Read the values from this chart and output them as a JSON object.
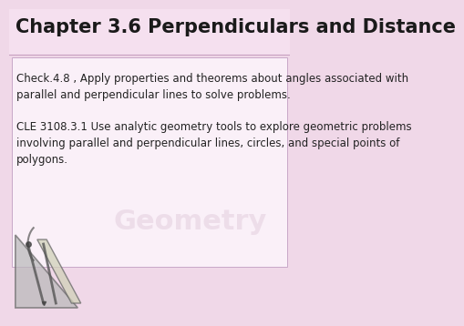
{
  "title": "Chapter 3.6 Perpendiculars and Distance",
  "title_fontsize": 15,
  "title_color": "#1a1a1a",
  "title_fontweight": "bold",
  "text_block1": "Check.4.8 , Apply properties and theorems about angles associated with\nparallel and perpendicular lines to solve problems.",
  "text_block2": "CLE 3108.3.1 Use analytic geometry tools to explore geometric problems\ninvolving parallel and perpendicular lines, circles, and special points of\npolygons.",
  "text_fontsize": 8.5,
  "text_color": "#222222",
  "bg_color": "#f0d8e8",
  "title_area_color": "#f5e0ef",
  "content_area_color": "#f8e8f4",
  "divider_color": "#c8a0c0",
  "content_box_color": "#faf0f8",
  "content_box_edge": "#c8a8c8"
}
